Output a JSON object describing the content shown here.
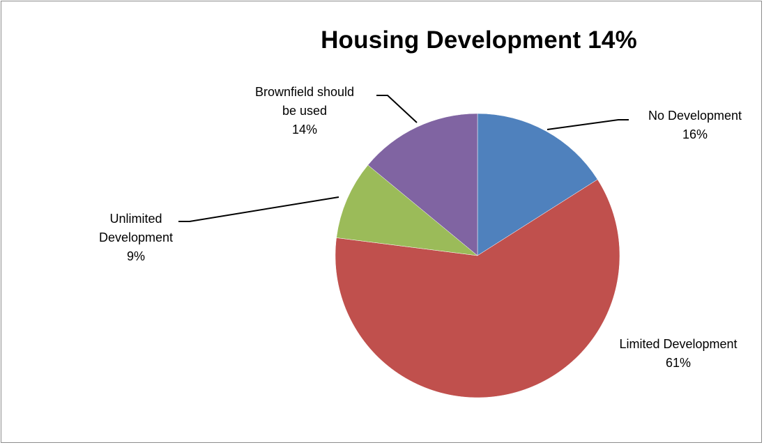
{
  "chart_data": {
    "type": "pie",
    "title": "Housing Development 14%",
    "slices": [
      {
        "name": "No Development",
        "value": 16,
        "label_lines": [
          "No Development",
          "16%"
        ],
        "color": "#4f81bd"
      },
      {
        "name": "Limited Development",
        "value": 61,
        "label_lines": [
          "Limited  Development",
          "61%"
        ],
        "color": "#c0504d"
      },
      {
        "name": "Unlimited Development",
        "value": 9,
        "label_lines": [
          "Unlimited",
          "Development",
          "9%"
        ],
        "color": "#9bbb59"
      },
      {
        "name": "Brownfield should be used",
        "value": 14,
        "label_lines": [
          "Brownfield  should",
          "be used",
          "14%"
        ],
        "color": "#8064a2"
      }
    ],
    "legend": "none",
    "start_angle": "12 o'clock, clockwise"
  }
}
